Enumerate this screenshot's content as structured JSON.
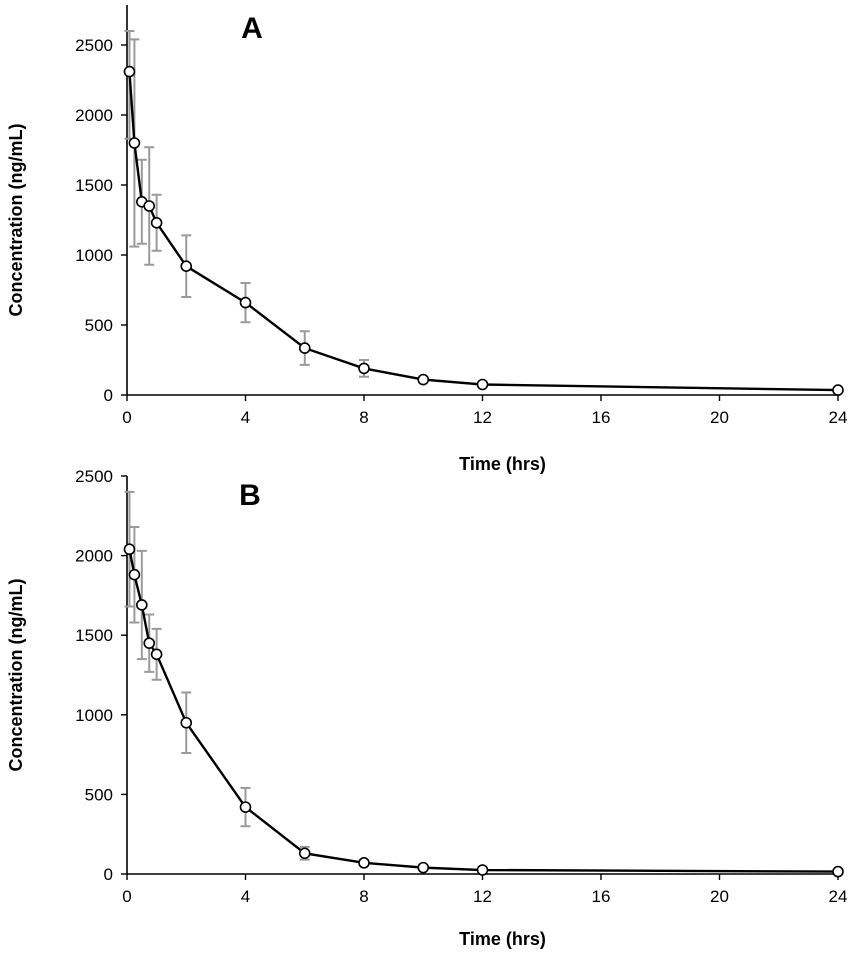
{
  "chart_data": [
    {
      "type": "line",
      "panel_label": "A",
      "xlabel": "Time (hrs)",
      "ylabel": "Concentration (ng/mL)",
      "xlim": [
        0,
        24
      ],
      "ylim": [
        0,
        2500
      ],
      "x_ticks": [
        0,
        4,
        8,
        12,
        16,
        20,
        24
      ],
      "y_ticks": [
        0,
        500,
        1000,
        1500,
        2000,
        2500
      ],
      "grid": false,
      "legend": "none",
      "series": [
        {
          "x": [
            0.083,
            0.25,
            0.5,
            0.75,
            1,
            2,
            4,
            6,
            8,
            10,
            12,
            24
          ],
          "y": [
            2310,
            1800,
            1380,
            1350,
            1230,
            920,
            660,
            335,
            190,
            110,
            75,
            35
          ],
          "error": [
            480,
            740,
            300,
            420,
            200,
            220,
            140,
            120,
            60,
            20,
            15,
            10
          ],
          "color": "#000000",
          "error_color": "#9a9a9a"
        }
      ]
    },
    {
      "type": "line",
      "panel_label": "B",
      "xlabel": "Time (hrs)",
      "ylabel": "Concentration (ng/mL)",
      "xlim": [
        0,
        24
      ],
      "ylim": [
        0,
        2500
      ],
      "x_ticks": [
        0,
        4,
        8,
        12,
        16,
        20,
        24
      ],
      "y_ticks": [
        0,
        500,
        1000,
        1500,
        2000,
        2500
      ],
      "grid": false,
      "legend": "none",
      "series": [
        {
          "x": [
            0.083,
            0.25,
            0.5,
            0.75,
            1,
            2,
            4,
            6,
            8,
            10,
            12,
            24
          ],
          "y": [
            2040,
            1880,
            1690,
            1450,
            1380,
            950,
            420,
            130,
            70,
            40,
            25,
            15
          ],
          "error": [
            360,
            300,
            340,
            180,
            160,
            190,
            120,
            40,
            15,
            10,
            8,
            5
          ],
          "color": "#000000",
          "error_color": "#9a9a9a"
        }
      ]
    }
  ]
}
